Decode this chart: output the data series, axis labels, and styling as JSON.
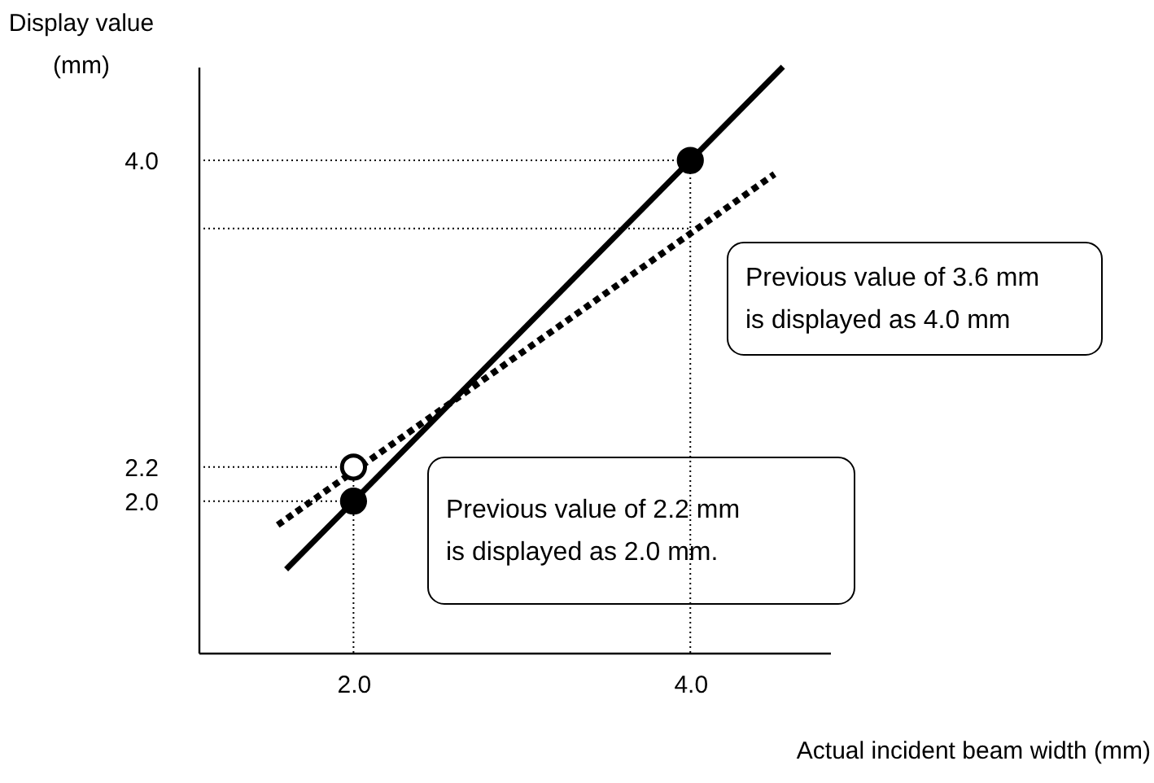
{
  "chart_data": {
    "type": "line",
    "xlabel": "Actual incident beam width (mm)",
    "ylabel": "Display value\n(mm)",
    "xlim": [
      1.08,
      4.83
    ],
    "ylim": [
      1.11,
      4.55
    ],
    "xticks": [
      {
        "value": 2,
        "label": "2.0"
      },
      {
        "value": 4,
        "label": "4.0"
      }
    ],
    "yticks": [
      {
        "value": 2,
        "label": "2.0"
      },
      {
        "value": 2.2,
        "label": "2.2"
      },
      {
        "value": 3.6,
        "label": null
      },
      {
        "value": 4,
        "label": "4.0"
      }
    ],
    "grid": false,
    "series": [
      {
        "color": "#000000",
        "line_style": "dotted",
        "x": [
          1.08,
          4.0
        ],
        "values": [
          4.0,
          4.0
        ]
      },
      {
        "color": "#000000",
        "line_style": "dotted",
        "x": [
          1.08,
          4.0
        ],
        "values": [
          3.6,
          3.6
        ]
      },
      {
        "color": "#000000",
        "line_style": "dotted",
        "x": [
          1.08,
          2.0
        ],
        "values": [
          2.2,
          2.2
        ]
      },
      {
        "color": "#000000",
        "line_style": "dotted",
        "x": [
          1.08,
          2.0
        ],
        "values": [
          2.0,
          2.0
        ]
      },
      {
        "color": "#000000",
        "line_style": "dotted",
        "x": [
          2.0,
          2.0
        ],
        "values": [
          1.11,
          2.2
        ]
      },
      {
        "color": "#000000",
        "line_style": "dotted",
        "x": [
          4.0,
          4.0
        ],
        "values": [
          1.11,
          4.0
        ]
      },
      {
        "color": "#000000",
        "line_style": "solid",
        "x": [
          1.6,
          4.55
        ],
        "values": [
          1.6,
          4.55
        ]
      },
      {
        "color": "#000000",
        "line_style": "dashed",
        "x": [
          1.55,
          4.5
        ],
        "values": [
          1.86,
          3.92
        ]
      },
      {
        "type": "scatter",
        "marker": "circle",
        "color": "#000000",
        "x": [
          2.0,
          4.0
        ],
        "values": [
          2.0,
          4.0
        ]
      },
      {
        "type": "scatter",
        "marker": "circle",
        "color": "#ffffff",
        "x": [
          2.0
        ],
        "values": [
          2.2
        ]
      }
    ],
    "annotations": [
      "Previous value of 3.6 mm\nis displayed as 4.0 mm",
      "Previous value of 2.2 mm\nis displayed as 2.0 mm."
    ]
  }
}
